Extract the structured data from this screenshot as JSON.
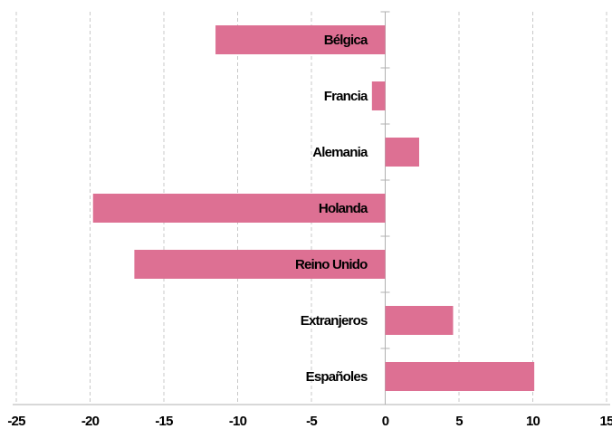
{
  "chart_data": {
    "type": "bar",
    "orientation": "horizontal",
    "categories": [
      "Bélgica",
      "Francia",
      "Alemania",
      "Holanda",
      "Reino Unido",
      "Extranjeros",
      "Españoles"
    ],
    "values": [
      -11.5,
      -0.9,
      2.3,
      -19.8,
      -17.0,
      4.6,
      10.1
    ],
    "color": "#dd7093",
    "xlim": [
      -25,
      15
    ],
    "xticks": [
      -25,
      -20,
      -15,
      -10,
      -5,
      0,
      5,
      10,
      15
    ],
    "grid": true
  }
}
